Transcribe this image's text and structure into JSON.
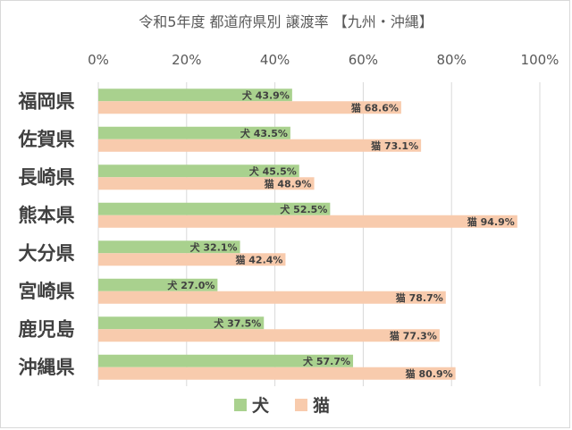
{
  "chart_data": {
    "type": "bar",
    "orientation": "horizontal",
    "title": "令和5年度 都道府県別 譲渡率 【九州・沖縄】",
    "categories": [
      "福岡県",
      "佐賀県",
      "長崎県",
      "熊本県",
      "大分県",
      "宮崎県",
      "鹿児島",
      "沖縄県"
    ],
    "series": [
      {
        "name": "犬",
        "values": [
          43.9,
          43.5,
          45.5,
          52.5,
          32.1,
          27.0,
          37.5,
          57.7
        ],
        "labels": [
          "犬 43.9%",
          "犬 43.5%",
          "犬 45.5%",
          "犬 52.5%",
          "犬 32.1%",
          "犬 27.0%",
          "犬 37.5%",
          "犬 57.7%"
        ],
        "color": "#a9d18e"
      },
      {
        "name": "猫",
        "values": [
          68.6,
          73.1,
          48.9,
          94.9,
          42.4,
          78.7,
          77.3,
          80.9
        ],
        "labels": [
          "猫 68.6%",
          "猫 73.1%",
          "猫 48.9%",
          "猫 94.9%",
          "猫 42.4%",
          "猫 78.7%",
          "猫 77.3%",
          "猫 80.9%"
        ],
        "color": "#f8cbad"
      }
    ],
    "xlim": [
      0,
      100
    ],
    "xticks": [
      "0%",
      "20%",
      "40%",
      "60%",
      "80%",
      "100%"
    ],
    "grid": true,
    "legend": "bottom"
  }
}
